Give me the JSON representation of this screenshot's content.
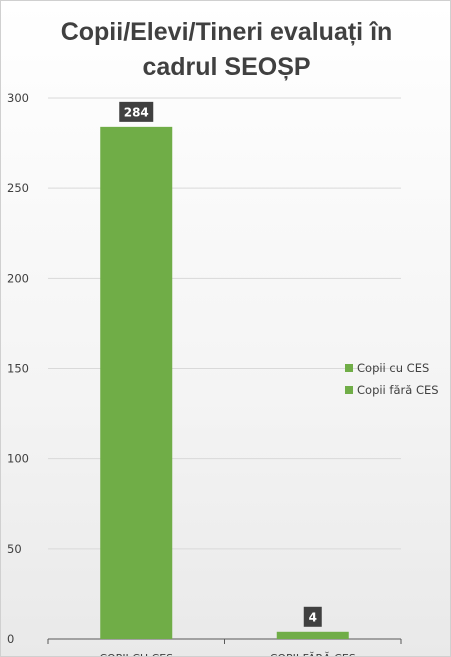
{
  "chart_data": {
    "type": "bar",
    "title_lines": [
      "Copii/Elevi/Tineri evaluați în",
      "cadrul SEOȘP"
    ],
    "categories": [
      "COPII CU CES",
      "COPII FĂRĂ CES"
    ],
    "values": [
      284,
      4
    ],
    "data_labels": [
      "284",
      "4"
    ],
    "ylim": [
      0,
      300
    ],
    "yticks": [
      0,
      50,
      100,
      150,
      200,
      250,
      300
    ],
    "grid": true,
    "legend_position": "right",
    "legend": [
      "Copii cu CES",
      "Copii fără CES"
    ],
    "bar_color": "#70ad47",
    "label_bg": "#404040",
    "label_color": "#ffffff",
    "grid_color": "#d9d9d9",
    "axis_text_color": "#404040"
  }
}
